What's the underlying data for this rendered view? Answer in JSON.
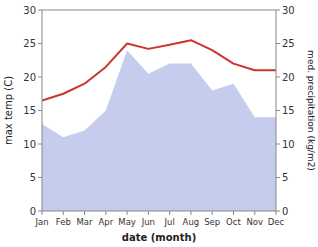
{
  "chart_data": {
    "type": "line",
    "xlabel": "date (month)",
    "ylabel": "max temp (C)",
    "y2label": "med. precipitation (kg/m2)",
    "categories": [
      "Jan",
      "Feb",
      "Mar",
      "Apr",
      "May",
      "Jun",
      "Jul",
      "Aug",
      "Sep",
      "Oct",
      "Nov",
      "Dec"
    ],
    "ylim": [
      0,
      30
    ],
    "yticks": [
      0,
      5,
      10,
      15,
      20,
      25,
      30
    ],
    "y2lim": [
      0,
      30
    ],
    "y2ticks": [
      0,
      5,
      10,
      15,
      20,
      25,
      30
    ],
    "grid": false,
    "series": [
      {
        "type": "area",
        "axis": "y2",
        "color": "#c5ccee",
        "values": [
          13.0,
          11.0,
          12.0,
          15.0,
          24.0,
          20.5,
          22.0,
          22.0,
          18.0,
          19.0,
          14.0,
          14.0
        ]
      },
      {
        "type": "line",
        "color": "#cc3333",
        "values": [
          16.5,
          17.5,
          19.0,
          21.5,
          25.0,
          24.2,
          24.8,
          25.5,
          24.0,
          22.0,
          21.0,
          21.0
        ]
      }
    ]
  }
}
